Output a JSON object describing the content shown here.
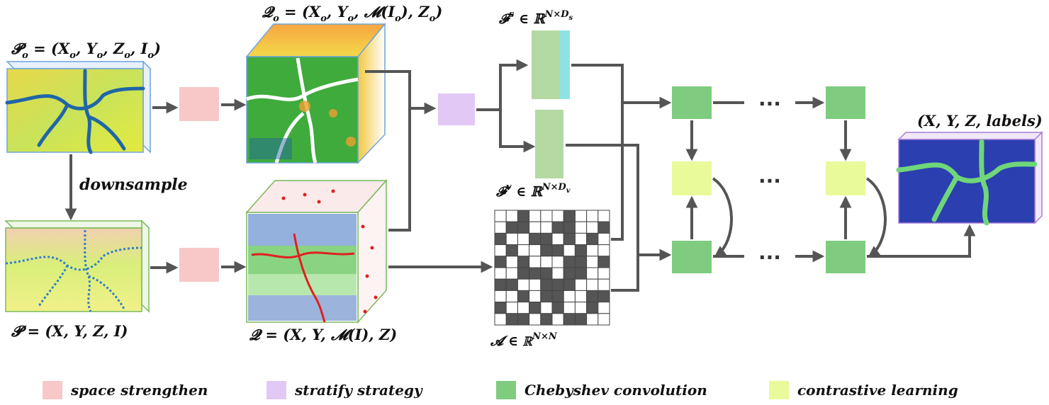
{
  "colors": {
    "space_strengthen": "#f8c8c8",
    "stratify_strategy": "#e2c9f5",
    "chebyshev": "#7fcb7f",
    "contrastive": "#e8fa9a",
    "feat_green": "#b5d9a3",
    "feat_cyan": "#8ee2e4",
    "arrow": "#555555",
    "matrix_dark": "#555555",
    "cube_blue_edge": "#6ea4dc",
    "cube_green_edge": "#7ab85a",
    "cube_purple_edge": "#a77bd6"
  },
  "labels": {
    "po": {
      "base": "𝓟",
      "sub": "o",
      "rest": " = (",
      "x": "X",
      "xs": "o",
      "y": ", Y",
      "ys": "o",
      "z": ", Z",
      "zs": "o",
      "i": ", I",
      "is": "o",
      "close": ")"
    },
    "qo": {
      "base": "𝓠",
      "sub": "o",
      "rest": " = (",
      "x": "X",
      "xs": "o",
      "y": ", Y",
      "ys": "o",
      "m": ", 𝓜(I",
      "ms": "o",
      "mclose": "), Z",
      "zs": "o",
      "close": ")"
    },
    "p": "𝓟 = (X, Y, Z, I)",
    "q": "𝓠 = (X, Y, 𝓜(I), Z)",
    "downsample": "downsample",
    "fs": {
      "base": "𝓕",
      "sup": "s",
      "mid": " ∈ ℝ",
      "dim": "N×D",
      "dimsub": "s"
    },
    "fv": {
      "base": "𝓕",
      "sup": "v",
      "mid": " ∈ ℝ",
      "dim": "N×D",
      "dimsub": "v"
    },
    "a": {
      "base": "𝓐",
      "mid": " ∈ ℝ",
      "dim": "N×N"
    },
    "output": "(X, Y, Z, labels)",
    "ellipsis": "···"
  },
  "legend": [
    {
      "label": "space strengthen",
      "color": "#f8c8c8"
    },
    {
      "label": "stratify strategy",
      "color": "#e2c9f5"
    },
    {
      "label": "Chebyshev convolution",
      "color": "#7fcb7f"
    },
    {
      "label": "contrastive learning",
      "color": "#e8fa9a"
    }
  ],
  "adjacency_matrix": [
    [
      0,
      0,
      1,
      0,
      0,
      0,
      1,
      0,
      0,
      0
    ],
    [
      0,
      1,
      1,
      0,
      0,
      1,
      1,
      0,
      0,
      1
    ],
    [
      1,
      0,
      0,
      1,
      1,
      0,
      1,
      0,
      1,
      0
    ],
    [
      0,
      1,
      0,
      0,
      1,
      1,
      0,
      1,
      0,
      0
    ],
    [
      1,
      0,
      1,
      0,
      0,
      0,
      1,
      1,
      0,
      1
    ],
    [
      0,
      0,
      1,
      1,
      1,
      0,
      1,
      1,
      0,
      0
    ],
    [
      1,
      1,
      0,
      0,
      1,
      1,
      1,
      0,
      0,
      0
    ],
    [
      0,
      0,
      1,
      0,
      1,
      1,
      0,
      0,
      1,
      1
    ],
    [
      1,
      0,
      0,
      1,
      0,
      1,
      0,
      0,
      1,
      0
    ],
    [
      0,
      1,
      1,
      0,
      1,
      0,
      1,
      1,
      0,
      0
    ]
  ]
}
